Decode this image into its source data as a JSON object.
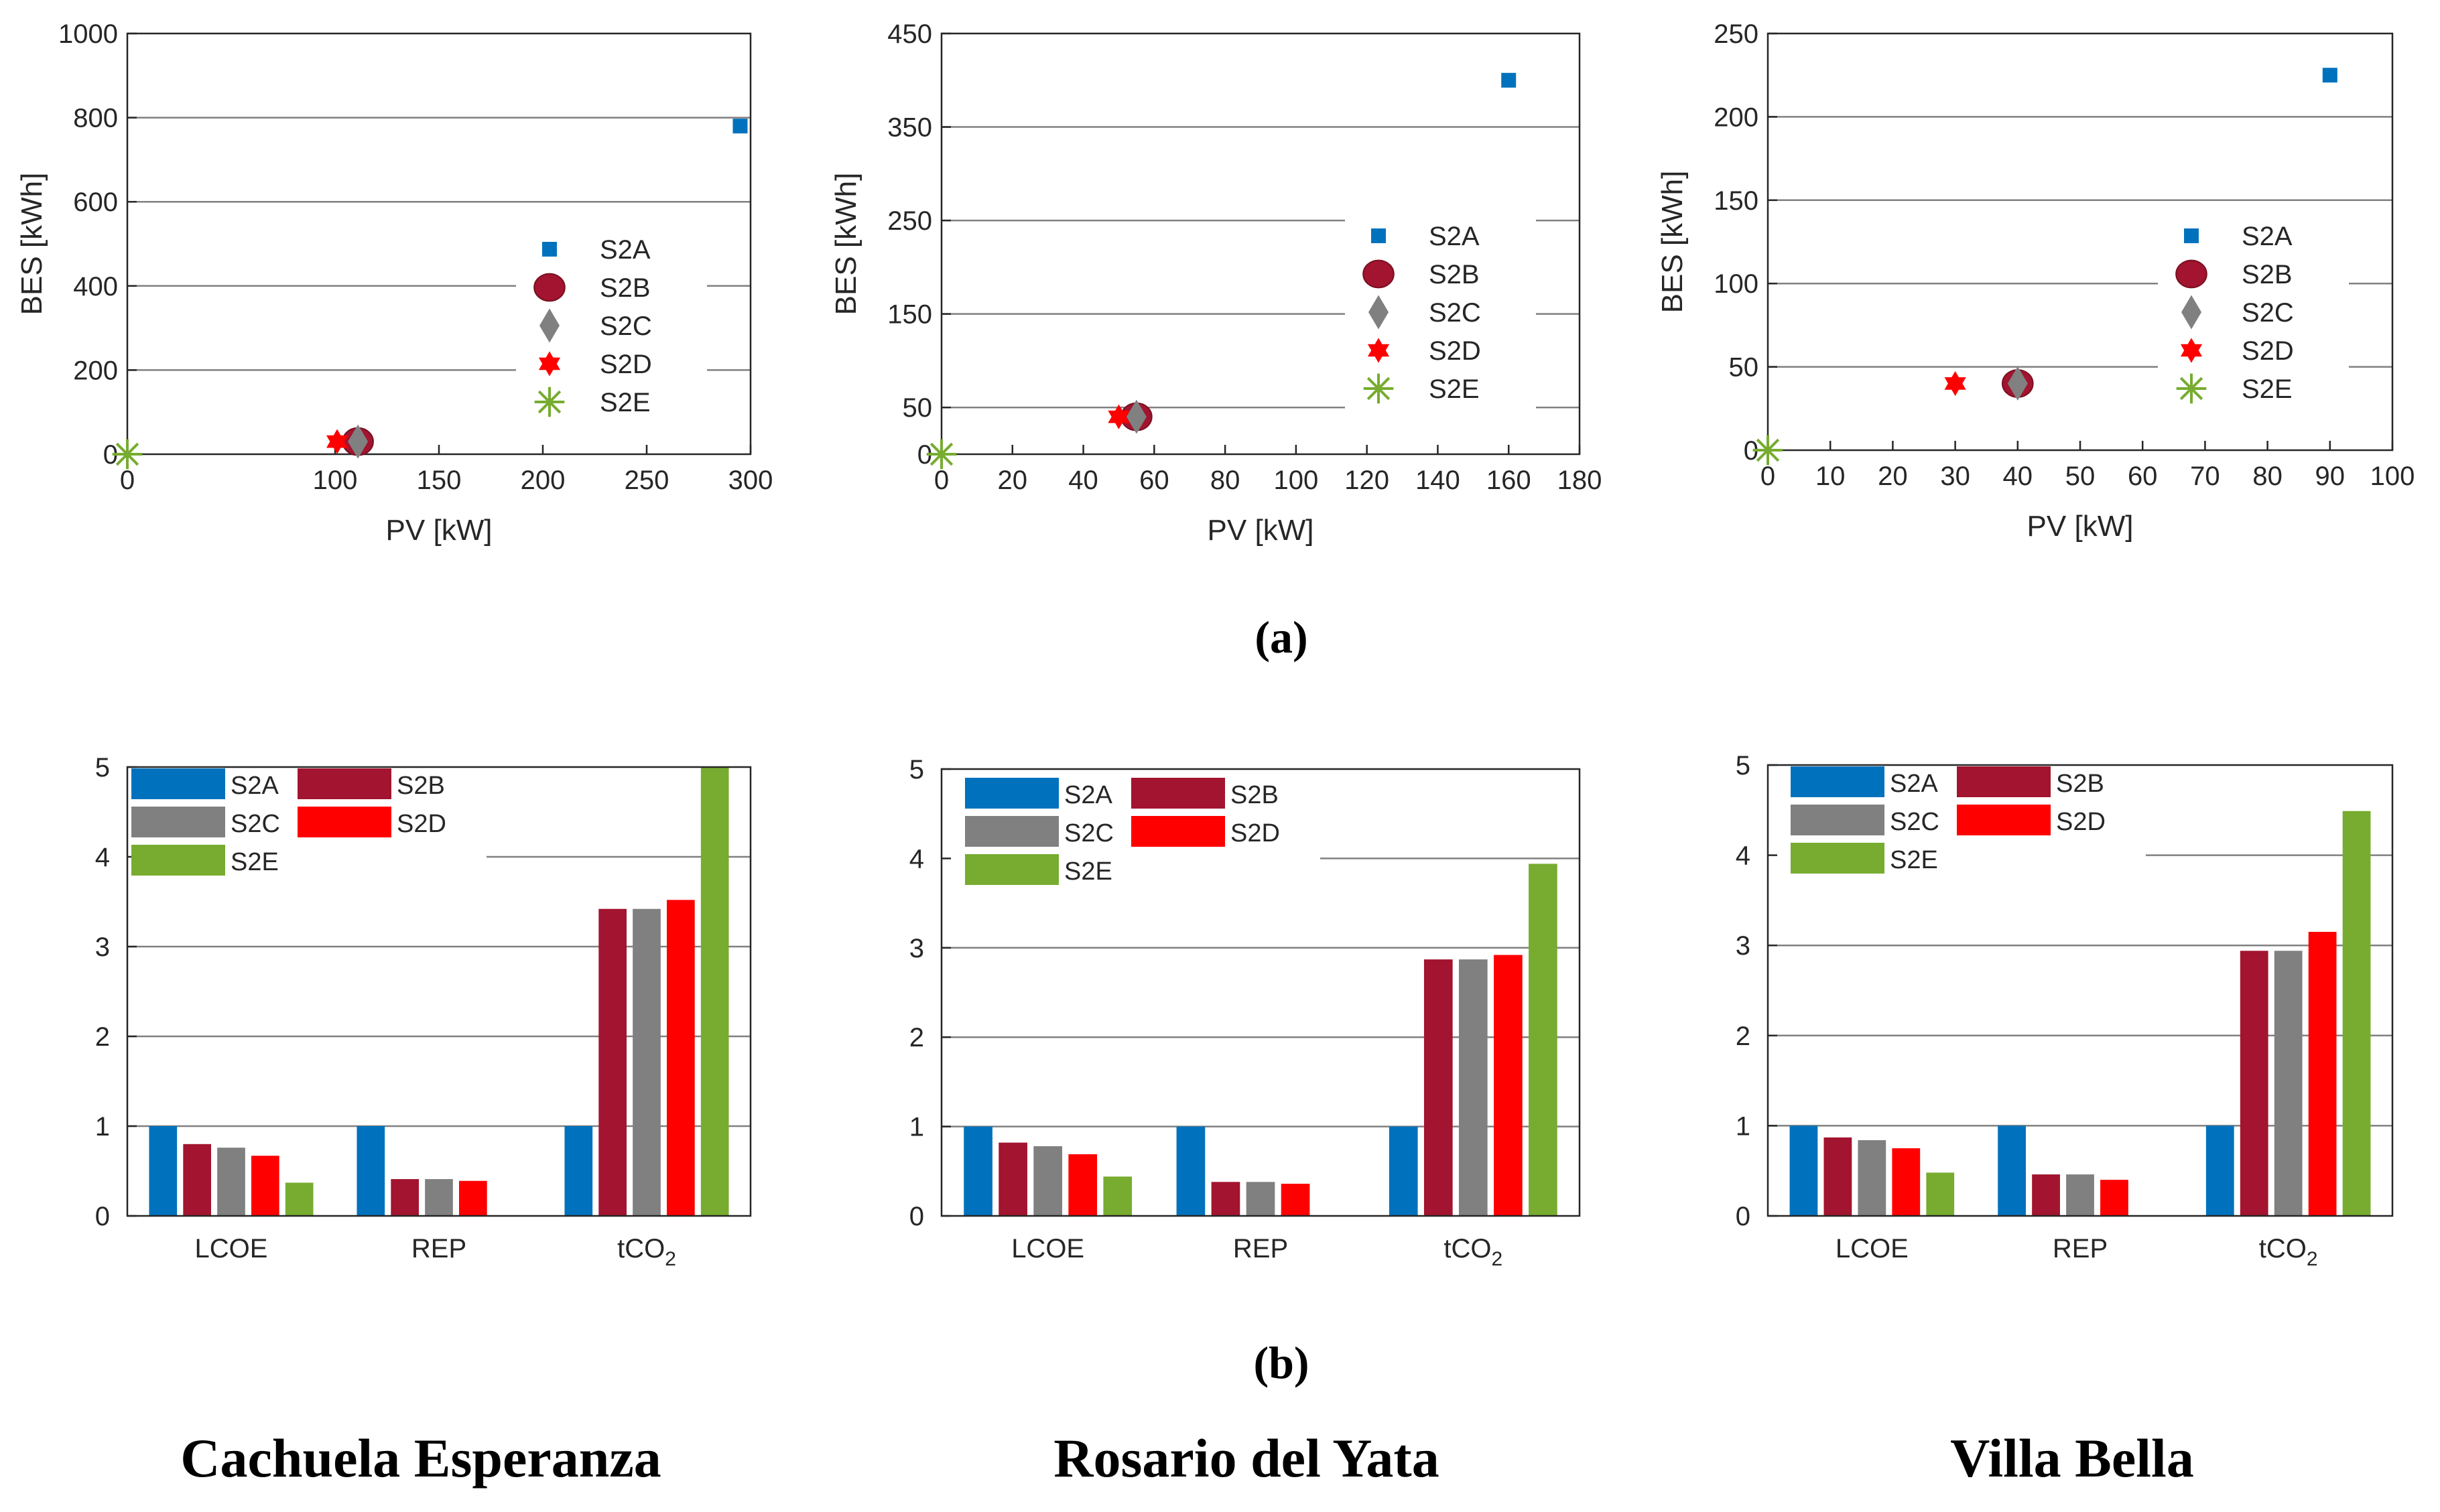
{
  "figure": {
    "panel_a_label": "(a)",
    "panel_b_label": "(b)",
    "sites": [
      "Cachuela Esperanza",
      "Rosario del Yata",
      "Villa Bella"
    ]
  },
  "colors": {
    "S2A": "#0072bd",
    "S2B": "#a2142f",
    "S2C": "#808080",
    "S2D": "#ff0000",
    "S2E": "#77ac30"
  },
  "chart_data": [
    {
      "type": "scatter",
      "site": "Cachuela Esperanza",
      "xlabel": "PV [kW]",
      "ylabel": "BES [kWh]",
      "xlim": [
        0,
        300
      ],
      "ylim": [
        0,
        1000
      ],
      "xticks": [
        0,
        100,
        150,
        200,
        250,
        300
      ],
      "yticks": [
        0,
        200,
        400,
        600,
        800,
        1000
      ],
      "gridlines": [
        200,
        400,
        600,
        800
      ],
      "series": [
        {
          "name": "S2A",
          "marker": "square",
          "x": 295,
          "y": 780
        },
        {
          "name": "S2B",
          "marker": "circle",
          "x": 111,
          "y": 30
        },
        {
          "name": "S2C",
          "marker": "diamond",
          "x": 111,
          "y": 30
        },
        {
          "name": "S2D",
          "marker": "hexagram",
          "x": 101,
          "y": 30
        },
        {
          "name": "S2E",
          "marker": "asterisk",
          "x": 0,
          "y": 0
        }
      ]
    },
    {
      "type": "scatter",
      "site": "Rosario del Yata",
      "xlabel": "PV [kW]",
      "ylabel": "BES [kWh]",
      "xlim": [
        0,
        180
      ],
      "ylim": [
        0,
        450
      ],
      "xticks": [
        0,
        20,
        40,
        60,
        80,
        100,
        120,
        140,
        160,
        180
      ],
      "yticks": [
        0,
        50,
        150,
        250,
        350,
        450
      ],
      "gridlines": [
        50,
        150,
        250,
        350
      ],
      "series": [
        {
          "name": "S2A",
          "marker": "square",
          "x": 160,
          "y": 400
        },
        {
          "name": "S2B",
          "marker": "circle",
          "x": 55,
          "y": 40
        },
        {
          "name": "S2C",
          "marker": "diamond",
          "x": 55,
          "y": 40
        },
        {
          "name": "S2D",
          "marker": "hexagram",
          "x": 50,
          "y": 40
        },
        {
          "name": "S2E",
          "marker": "asterisk",
          "x": 0,
          "y": 0
        }
      ]
    },
    {
      "type": "scatter",
      "site": "Villa Bella",
      "xlabel": "PV [kW]",
      "ylabel": "BES [kWh]",
      "xlim": [
        0,
        100
      ],
      "ylim": [
        0,
        250
      ],
      "xticks": [
        0,
        10,
        20,
        30,
        40,
        50,
        60,
        70,
        80,
        90,
        100
      ],
      "yticks": [
        0,
        50,
        100,
        150,
        200,
        250
      ],
      "gridlines": [
        50,
        100,
        150,
        200
      ],
      "series": [
        {
          "name": "S2A",
          "marker": "square",
          "x": 90,
          "y": 225
        },
        {
          "name": "S2B",
          "marker": "circle",
          "x": 40,
          "y": 40
        },
        {
          "name": "S2C",
          "marker": "diamond",
          "x": 40,
          "y": 40
        },
        {
          "name": "S2D",
          "marker": "hexagram",
          "x": 30,
          "y": 40
        },
        {
          "name": "S2E",
          "marker": "asterisk",
          "x": 0,
          "y": 0
        }
      ]
    },
    {
      "type": "bar",
      "site": "Cachuela Esperanza",
      "categories": [
        "LCOE",
        "REP",
        "tCO2"
      ],
      "ylim": [
        0,
        5
      ],
      "yticks": [
        0,
        1,
        2,
        3,
        4,
        5
      ],
      "gridlines": [
        1,
        2,
        3,
        4
      ],
      "series": [
        {
          "name": "S2A",
          "values": [
            1.0,
            1.0,
            1.0
          ]
        },
        {
          "name": "S2B",
          "values": [
            0.8,
            0.41,
            3.42
          ]
        },
        {
          "name": "S2C",
          "values": [
            0.76,
            0.41,
            3.42
          ]
        },
        {
          "name": "S2D",
          "values": [
            0.67,
            0.39,
            3.52
          ]
        },
        {
          "name": "S2E",
          "values": [
            0.37,
            0,
            5.0
          ]
        }
      ]
    },
    {
      "type": "bar",
      "site": "Rosario del Yata",
      "categories": [
        "LCOE",
        "REP",
        "tCO2"
      ],
      "ylim": [
        0,
        5
      ],
      "yticks": [
        0,
        1,
        2,
        3,
        4,
        5
      ],
      "gridlines": [
        1,
        2,
        3,
        4
      ],
      "series": [
        {
          "name": "S2A",
          "values": [
            1.0,
            1.0,
            1.0
          ]
        },
        {
          "name": "S2B",
          "values": [
            0.82,
            0.38,
            2.87
          ]
        },
        {
          "name": "S2C",
          "values": [
            0.78,
            0.38,
            2.87
          ]
        },
        {
          "name": "S2D",
          "values": [
            0.69,
            0.36,
            2.92
          ]
        },
        {
          "name": "S2E",
          "values": [
            0.44,
            0,
            3.94
          ]
        }
      ]
    },
    {
      "type": "bar",
      "site": "Villa Bella",
      "categories": [
        "LCOE",
        "REP",
        "tCO2"
      ],
      "ylim": [
        0,
        5
      ],
      "yticks": [
        0,
        1,
        2,
        3,
        4,
        5
      ],
      "gridlines": [
        1,
        2,
        3,
        4
      ],
      "series": [
        {
          "name": "S2A",
          "values": [
            1.0,
            1.0,
            1.0
          ]
        },
        {
          "name": "S2B",
          "values": [
            0.87,
            0.46,
            2.94
          ]
        },
        {
          "name": "S2C",
          "values": [
            0.84,
            0.46,
            2.94
          ]
        },
        {
          "name": "S2D",
          "values": [
            0.75,
            0.4,
            3.15
          ]
        },
        {
          "name": "S2E",
          "values": [
            0.48,
            0,
            4.49
          ]
        }
      ]
    }
  ]
}
